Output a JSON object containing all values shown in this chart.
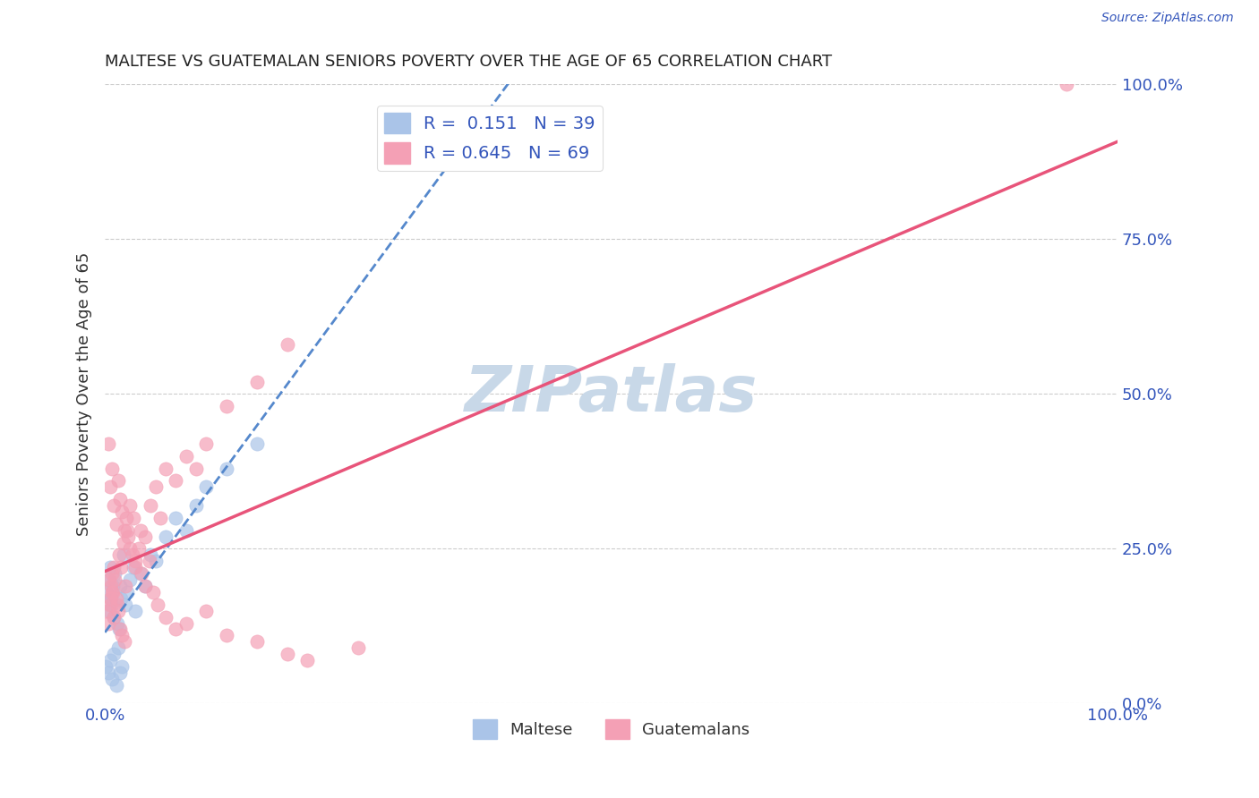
{
  "title": "MALTESE VS GUATEMALAN SENIORS POVERTY OVER THE AGE OF 65 CORRELATION CHART",
  "source": "Source: ZipAtlas.com",
  "ylabel": "Seniors Poverty Over the Age of 65",
  "xlabel": "",
  "xlim": [
    0,
    1
  ],
  "ylim": [
    0,
    1
  ],
  "xtick_labels": [
    "0.0%",
    "100.0%"
  ],
  "ytick_labels": [
    "0.0%",
    "25.0%",
    "50.0%",
    "75.0%",
    "100.0%"
  ],
  "ytick_positions": [
    0,
    0.25,
    0.5,
    0.75,
    1.0
  ],
  "maltese_R": 0.151,
  "maltese_N": 39,
  "guatemalan_R": 0.645,
  "guatemalan_N": 69,
  "maltese_color": "#aac4e8",
  "guatemalan_color": "#f4a0b5",
  "maltese_line_color": "#5588cc",
  "guatemalan_line_color": "#e8547a",
  "legend_text_color": "#3355bb",
  "title_color": "#222222",
  "watermark_color": "#c8d8e8",
  "grid_color": "#cccccc",
  "maltese_x": [
    0.002,
    0.003,
    0.004,
    0.005,
    0.006,
    0.007,
    0.008,
    0.009,
    0.01,
    0.012,
    0.014,
    0.015,
    0.016,
    0.018,
    0.02,
    0.022,
    0.025,
    0.028,
    0.03,
    0.035,
    0.04,
    0.045,
    0.05,
    0.06,
    0.07,
    0.08,
    0.09,
    0.1,
    0.12,
    0.15,
    0.001,
    0.003,
    0.005,
    0.007,
    0.009,
    0.011,
    0.013,
    0.015,
    0.017
  ],
  "maltese_y": [
    0.18,
    0.2,
    0.15,
    0.22,
    0.17,
    0.16,
    0.19,
    0.14,
    0.21,
    0.13,
    0.12,
    0.19,
    0.17,
    0.24,
    0.16,
    0.18,
    0.2,
    0.22,
    0.15,
    0.21,
    0.19,
    0.24,
    0.23,
    0.27,
    0.3,
    0.28,
    0.32,
    0.35,
    0.38,
    0.42,
    0.06,
    0.05,
    0.07,
    0.04,
    0.08,
    0.03,
    0.09,
    0.05,
    0.06
  ],
  "guatemalan_x": [
    0.002,
    0.004,
    0.005,
    0.006,
    0.007,
    0.008,
    0.009,
    0.01,
    0.012,
    0.014,
    0.016,
    0.018,
    0.02,
    0.022,
    0.025,
    0.028,
    0.03,
    0.035,
    0.04,
    0.045,
    0.05,
    0.055,
    0.06,
    0.07,
    0.08,
    0.09,
    0.1,
    0.12,
    0.15,
    0.18,
    0.003,
    0.005,
    0.007,
    0.009,
    0.011,
    0.013,
    0.015,
    0.017,
    0.019,
    0.021,
    0.023,
    0.025,
    0.027,
    0.03,
    0.033,
    0.036,
    0.04,
    0.044,
    0.048,
    0.052,
    0.06,
    0.07,
    0.08,
    0.1,
    0.12,
    0.15,
    0.18,
    0.2,
    0.25,
    0.003,
    0.005,
    0.007,
    0.009,
    0.011,
    0.013,
    0.015,
    0.017,
    0.019,
    0.95
  ],
  "guatemalan_y": [
    0.15,
    0.2,
    0.17,
    0.19,
    0.21,
    0.18,
    0.22,
    0.2,
    0.16,
    0.24,
    0.22,
    0.26,
    0.19,
    0.28,
    0.25,
    0.3,
    0.23,
    0.28,
    0.27,
    0.32,
    0.35,
    0.3,
    0.38,
    0.36,
    0.4,
    0.38,
    0.42,
    0.48,
    0.52,
    0.58,
    0.42,
    0.35,
    0.38,
    0.32,
    0.29,
    0.36,
    0.33,
    0.31,
    0.28,
    0.3,
    0.27,
    0.32,
    0.24,
    0.22,
    0.25,
    0.21,
    0.19,
    0.23,
    0.18,
    0.16,
    0.14,
    0.12,
    0.13,
    0.15,
    0.11,
    0.1,
    0.08,
    0.07,
    0.09,
    0.13,
    0.16,
    0.18,
    0.14,
    0.17,
    0.15,
    0.12,
    0.11,
    0.1,
    1.0
  ]
}
